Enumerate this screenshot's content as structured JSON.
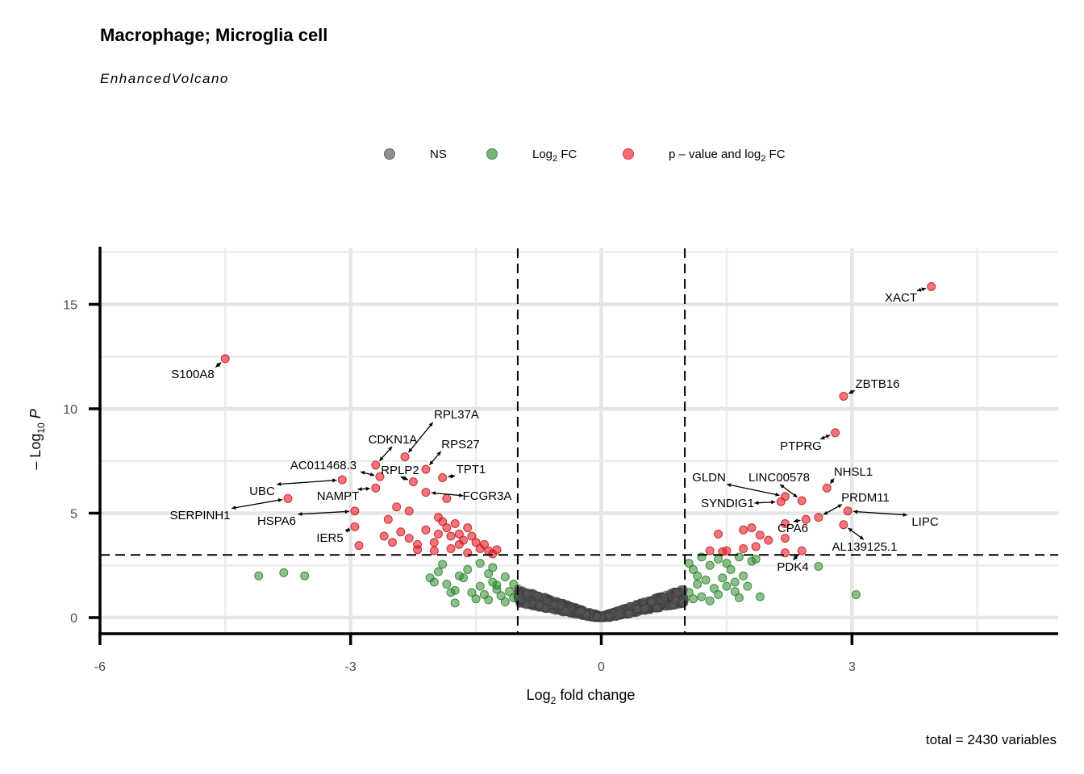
{
  "chart_data": {
    "type": "scatter",
    "title": "Macrophage; Microglia cell",
    "subtitle": "EnhancedVolcano",
    "xlabel": "Log2 fold change",
    "ylabel": "-Log10 P",
    "caption": "total = 2430 variables",
    "xlim": [
      -6,
      5.3
    ],
    "ylim": [
      0,
      17.5
    ],
    "x_ticks": [
      -6,
      -3,
      0,
      3
    ],
    "y_ticks": [
      0,
      5,
      10,
      15
    ],
    "fc_cutoff": 1,
    "p_cutoff_log10": 3,
    "grid": true,
    "legend_position": "top",
    "legend": [
      {
        "key": "NS",
        "label": "NS",
        "color": "#555555"
      },
      {
        "key": "FC",
        "label": "Log2 FC",
        "color": "#2e8b2e"
      },
      {
        "key": "P_FC",
        "label": "p – value and log2 FC",
        "color": "#e8202a"
      }
    ],
    "series": {
      "P_FC": [
        [
          3.95,
          15.85
        ],
        [
          -4.5,
          12.4
        ],
        [
          2.9,
          10.6
        ],
        [
          2.8,
          8.85
        ],
        [
          -2.35,
          7.7
        ],
        [
          -2.7,
          7.3
        ],
        [
          -2.65,
          6.75
        ],
        [
          -3.1,
          6.6
        ],
        [
          -2.25,
          6.5
        ],
        [
          -2.1,
          7.1
        ],
        [
          -1.9,
          6.7
        ],
        [
          -2.1,
          6.0
        ],
        [
          -1.85,
          5.7
        ],
        [
          -2.7,
          6.2
        ],
        [
          -3.75,
          5.7
        ],
        [
          -2.95,
          5.1
        ],
        [
          -2.95,
          4.35
        ],
        [
          -2.9,
          3.45
        ],
        [
          2.4,
          5.6
        ],
        [
          2.2,
          5.8
        ],
        [
          2.15,
          5.55
        ],
        [
          2.7,
          6.2
        ],
        [
          2.95,
          5.1
        ],
        [
          2.9,
          4.45
        ],
        [
          2.6,
          4.8
        ],
        [
          2.45,
          4.7
        ],
        [
          2.2,
          4.5
        ],
        [
          2.2,
          3.8
        ],
        [
          2.2,
          3.1
        ],
        [
          2.4,
          3.2
        ],
        [
          1.3,
          3.2
        ],
        [
          1.4,
          4.0
        ],
        [
          1.7,
          4.2
        ],
        [
          1.8,
          4.3
        ],
        [
          1.9,
          3.95
        ],
        [
          2.0,
          3.7
        ],
        [
          1.85,
          3.4
        ],
        [
          1.7,
          3.3
        ],
        [
          1.5,
          3.2
        ],
        [
          1.45,
          3.15
        ],
        [
          -2.45,
          5.3
        ],
        [
          -2.3,
          5.1
        ],
        [
          -2.55,
          4.7
        ],
        [
          -2.4,
          4.1
        ],
        [
          -2.6,
          3.9
        ],
        [
          -2.3,
          3.8
        ],
        [
          -2.2,
          3.5
        ],
        [
          -2.0,
          3.6
        ],
        [
          -1.95,
          4.8
        ],
        [
          -1.9,
          4.6
        ],
        [
          -1.85,
          4.3
        ],
        [
          -1.8,
          3.9
        ],
        [
          -1.75,
          4.5
        ],
        [
          -1.7,
          4.0
        ],
        [
          -1.65,
          3.7
        ],
        [
          -1.6,
          4.3
        ],
        [
          -1.55,
          3.9
        ],
        [
          -1.5,
          3.6
        ],
        [
          -1.45,
          3.3
        ],
        [
          -1.4,
          3.5
        ],
        [
          -1.35,
          3.2
        ],
        [
          -1.3,
          3.05
        ],
        [
          -1.25,
          3.25
        ],
        [
          -2.2,
          3.25
        ],
        [
          -2.0,
          3.2
        ],
        [
          -1.8,
          3.3
        ],
        [
          -1.6,
          3.1
        ],
        [
          -1.7,
          3.5
        ],
        [
          -2.1,
          4.2
        ],
        [
          -1.95,
          4.0
        ],
        [
          -2.5,
          3.6
        ]
      ],
      "FC": [
        [
          -4.1,
          2.0
        ],
        [
          -3.8,
          2.15
        ],
        [
          -3.55,
          2.0
        ],
        [
          2.6,
          2.45
        ],
        [
          3.05,
          1.1
        ],
        [
          -1.85,
          1.6
        ],
        [
          -1.75,
          1.3
        ],
        [
          -1.65,
          1.9
        ],
        [
          -1.55,
          1.2
        ],
        [
          -1.5,
          0.9
        ],
        [
          -1.45,
          1.5
        ],
        [
          -1.4,
          1.1
        ],
        [
          -1.35,
          0.85
        ],
        [
          -1.3,
          1.7
        ],
        [
          -1.25,
          1.35
        ],
        [
          -1.2,
          1.05
        ],
        [
          -1.15,
          0.75
        ],
        [
          -1.1,
          1.25
        ],
        [
          -1.05,
          0.95
        ],
        [
          -2.0,
          1.7
        ],
        [
          -1.95,
          2.2
        ],
        [
          -1.9,
          2.55
        ],
        [
          -1.7,
          2.0
        ],
        [
          -1.6,
          2.3
        ],
        [
          -1.45,
          2.6
        ],
        [
          -1.35,
          2.1
        ],
        [
          -1.25,
          1.55
        ],
        [
          -2.05,
          1.9
        ],
        [
          -1.8,
          1.2
        ],
        [
          -1.75,
          0.7
        ],
        [
          1.05,
          1.2
        ],
        [
          1.1,
          0.9
        ],
        [
          1.15,
          1.6
        ],
        [
          1.2,
          1.0
        ],
        [
          1.25,
          1.8
        ],
        [
          1.3,
          0.8
        ],
        [
          1.35,
          1.4
        ],
        [
          1.4,
          1.1
        ],
        [
          1.45,
          1.9
        ],
        [
          1.5,
          1.5
        ],
        [
          1.55,
          2.3
        ],
        [
          1.6,
          1.25
        ],
        [
          1.65,
          0.95
        ],
        [
          1.7,
          2.0
        ],
        [
          1.75,
          1.5
        ],
        [
          1.8,
          2.7
        ],
        [
          1.85,
          2.8
        ],
        [
          1.9,
          1.0
        ],
        [
          1.1,
          2.3
        ],
        [
          1.3,
          2.5
        ],
        [
          1.5,
          2.6
        ],
        [
          1.65,
          2.9
        ],
        [
          1.2,
          2.9
        ],
        [
          1.4,
          2.8
        ],
        [
          1.6,
          1.7
        ],
        [
          1.15,
          2.0
        ],
        [
          -1.3,
          2.4
        ],
        [
          -1.15,
          1.95
        ],
        [
          -1.05,
          1.6
        ],
        [
          1.05,
          2.6
        ]
      ]
    },
    "labels": [
      {
        "gene": "XACT",
        "x": 3.95,
        "y": 15.85
      },
      {
        "gene": "S100A8",
        "x": -4.5,
        "y": 12.4
      },
      {
        "gene": "ZBTB16",
        "x": 2.9,
        "y": 10.6
      },
      {
        "gene": "PTPRG",
        "x": 2.8,
        "y": 8.85
      },
      {
        "gene": "RPL37A",
        "x": -2.35,
        "y": 7.7
      },
      {
        "gene": "CDKN1A",
        "x": -2.7,
        "y": 7.3
      },
      {
        "gene": "RPS27",
        "x": -2.1,
        "y": 7.1
      },
      {
        "gene": "AC011468.3",
        "x": -2.65,
        "y": 6.75
      },
      {
        "gene": "TPT1",
        "x": -1.9,
        "y": 6.7
      },
      {
        "gene": "RPLP2",
        "x": -2.25,
        "y": 6.5
      },
      {
        "gene": "UBC",
        "x": -3.1,
        "y": 6.6
      },
      {
        "gene": "NAMPT",
        "x": -2.7,
        "y": 6.2
      },
      {
        "gene": "FCGR3A",
        "x": -2.1,
        "y": 6.0
      },
      {
        "gene": "SERPINH1",
        "x": -3.75,
        "y": 5.7
      },
      {
        "gene": "HSPA6",
        "x": -2.95,
        "y": 5.1
      },
      {
        "gene": "IER5",
        "x": -2.95,
        "y": 4.35
      },
      {
        "gene": "GLDN",
        "x": 2.2,
        "y": 5.8
      },
      {
        "gene": "LINC00578",
        "x": 2.4,
        "y": 5.6
      },
      {
        "gene": "NHSL1",
        "x": 2.7,
        "y": 6.2
      },
      {
        "gene": "SYNDIG1",
        "x": 2.15,
        "y": 5.55
      },
      {
        "gene": "PRDM11",
        "x": 2.6,
        "y": 4.8
      },
      {
        "gene": "LIPC",
        "x": 2.95,
        "y": 5.1
      },
      {
        "gene": "CPA6",
        "x": 2.45,
        "y": 4.7
      },
      {
        "gene": "AL139125.1",
        "x": 2.9,
        "y": 4.45
      },
      {
        "gene": "PDK4",
        "x": 2.4,
        "y": 3.2
      }
    ]
  }
}
